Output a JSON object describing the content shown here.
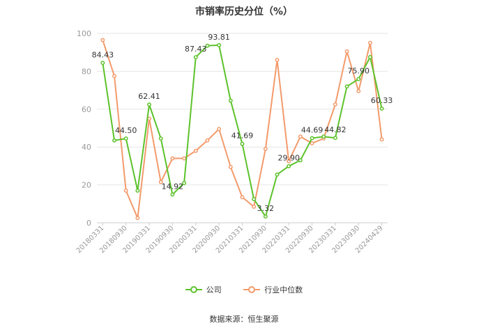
{
  "chart_data": {
    "type": "line",
    "title": "市销率历史分位（%）",
    "ylim": [
      0,
      100
    ],
    "y_ticks": [
      "0",
      "20",
      "40",
      "60",
      "80",
      "100"
    ],
    "x_tick_labels": [
      "20180331",
      "20180930",
      "20190331",
      "20190930",
      "20200331",
      "20200930",
      "20210331",
      "20210930",
      "20220331",
      "20220930",
      "20230331",
      "20230930",
      "20240429"
    ],
    "x_label_indices": [
      0,
      2,
      4,
      6,
      8,
      10,
      12,
      14,
      16,
      18,
      20,
      22,
      24
    ],
    "series": [
      {
        "name": "公司",
        "color": "#5cc22a",
        "values": [
          84.43,
          43.5,
          44.5,
          17.0,
          62.41,
          44.5,
          14.92,
          21.0,
          87.43,
          93.5,
          93.81,
          64.5,
          41.69,
          12.5,
          3.32,
          25.5,
          29.9,
          33.0,
          44.69,
          45.5,
          44.82,
          72.0,
          75.9,
          87.5,
          60.33
        ],
        "labels": {
          "0": "84.43",
          "2": "44.50",
          "4": "62.41",
          "6": "14.92",
          "8": "87.43",
          "10": "93.81",
          "12": "41.69",
          "14": "3.32",
          "16": "29.90",
          "18": "44.69",
          "20": "44.82",
          "22": "75.90",
          "24": "60.33"
        }
      },
      {
        "name": "行业中位数",
        "color": "#f39a6b",
        "values": [
          96.5,
          77.5,
          17.0,
          2.5,
          55.0,
          21.5,
          34.0,
          34.0,
          38.0,
          43.5,
          49.5,
          29.5,
          13.5,
          8.5,
          39.0,
          86.0,
          32.5,
          45.5,
          42.0,
          44.5,
          62.5,
          90.5,
          69.5,
          95.0,
          44.0
        ],
        "labels": {}
      }
    ],
    "grid": true,
    "legend_position": "bottom"
  },
  "source": "数据来源：恒生聚源"
}
